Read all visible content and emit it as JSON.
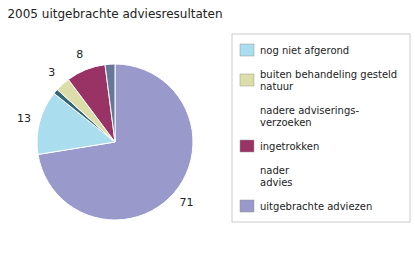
{
  "chart_data": {
    "type": "pie",
    "title": "2005 uitgebrachte adviesresultaten",
    "values": [
      71,
      13,
      1,
      3,
      8,
      2
    ],
    "colors": [
      "#9999cc",
      "#aaddee",
      "#336677",
      "#ddddaa",
      "#993366",
      "#667799"
    ],
    "data_labels": true,
    "value_labels": [
      "71",
      "13",
      null,
      "3",
      "8",
      null
    ],
    "legend_items": [
      {
        "label": "nog niet afgerond",
        "color": "#aaddee"
      },
      {
        "label": "buiten behandeling gesteld\nnatuur",
        "color": "#ddddaa"
      },
      {
        "label": "nadere adviserings-\nverzoeken",
        "color": null
      },
      {
        "label": "ingetrokken",
        "color": "#993366"
      },
      {
        "label": "nader\nadvies",
        "color": null
      },
      {
        "label": "uitgebrachte adviezen",
        "color": "#9999cc"
      }
    ]
  }
}
